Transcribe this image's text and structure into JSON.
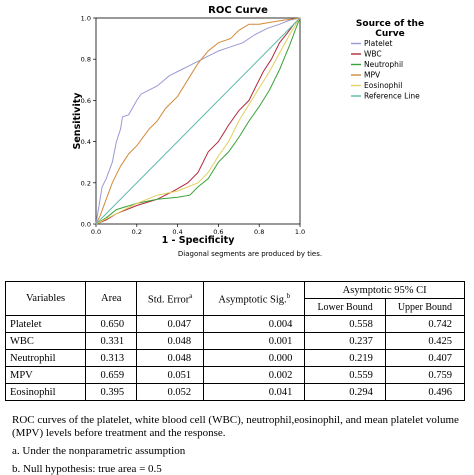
{
  "chart_data": {
    "type": "line",
    "title": "ROC Curve",
    "xlabel": "1 - Specificity",
    "ylabel": "Sensitivity",
    "xlim": [
      0,
      1
    ],
    "ylim": [
      0,
      1
    ],
    "xticks": [
      "0.0",
      "0.2",
      "0.4",
      "0.6",
      "0.8",
      "1.0"
    ],
    "yticks": [
      "0.0",
      "0.2",
      "0.4",
      "0.6",
      "0.8",
      "1.0"
    ],
    "legend_title": "Source of the Curve",
    "legend_position": "right",
    "footnote": "Diagonal segments are produced by ties.",
    "series": [
      {
        "name": "Platelet",
        "color": "#9a9ad6",
        "points": [
          [
            0,
            0
          ],
          [
            0.03,
            0.18
          ],
          [
            0.05,
            0.22
          ],
          [
            0.08,
            0.3
          ],
          [
            0.1,
            0.4
          ],
          [
            0.12,
            0.46
          ],
          [
            0.13,
            0.52
          ],
          [
            0.16,
            0.53
          ],
          [
            0.2,
            0.6
          ],
          [
            0.22,
            0.63
          ],
          [
            0.26,
            0.65
          ],
          [
            0.3,
            0.67
          ],
          [
            0.36,
            0.72
          ],
          [
            0.42,
            0.75
          ],
          [
            0.46,
            0.77
          ],
          [
            0.5,
            0.79
          ],
          [
            0.56,
            0.82
          ],
          [
            0.6,
            0.84
          ],
          [
            0.66,
            0.86
          ],
          [
            0.72,
            0.88
          ],
          [
            0.78,
            0.92
          ],
          [
            0.84,
            0.95
          ],
          [
            0.9,
            0.97
          ],
          [
            0.95,
            0.99
          ],
          [
            1,
            1
          ]
        ]
      },
      {
        "name": "WBC",
        "color": "#b02a3c",
        "points": [
          [
            0,
            0
          ],
          [
            0.05,
            0.02
          ],
          [
            0.1,
            0.05
          ],
          [
            0.2,
            0.09
          ],
          [
            0.3,
            0.12
          ],
          [
            0.38,
            0.16
          ],
          [
            0.45,
            0.2
          ],
          [
            0.5,
            0.25
          ],
          [
            0.55,
            0.35
          ],
          [
            0.6,
            0.4
          ],
          [
            0.65,
            0.48
          ],
          [
            0.7,
            0.55
          ],
          [
            0.75,
            0.6
          ],
          [
            0.78,
            0.66
          ],
          [
            0.82,
            0.74
          ],
          [
            0.86,
            0.8
          ],
          [
            0.9,
            0.88
          ],
          [
            0.94,
            0.93
          ],
          [
            0.97,
            0.97
          ],
          [
            1,
            1
          ]
        ]
      },
      {
        "name": "Neutrophil",
        "color": "#3aa33a",
        "points": [
          [
            0,
            0
          ],
          [
            0.05,
            0.03
          ],
          [
            0.1,
            0.07
          ],
          [
            0.2,
            0.1
          ],
          [
            0.3,
            0.12
          ],
          [
            0.4,
            0.13
          ],
          [
            0.46,
            0.14
          ],
          [
            0.5,
            0.18
          ],
          [
            0.55,
            0.22
          ],
          [
            0.6,
            0.3
          ],
          [
            0.65,
            0.35
          ],
          [
            0.7,
            0.42
          ],
          [
            0.75,
            0.5
          ],
          [
            0.8,
            0.57
          ],
          [
            0.85,
            0.65
          ],
          [
            0.9,
            0.75
          ],
          [
            0.95,
            0.87
          ],
          [
            0.98,
            0.95
          ],
          [
            1,
            1
          ]
        ]
      },
      {
        "name": "MPV",
        "color": "#d48a3a",
        "points": [
          [
            0,
            0
          ],
          [
            0.02,
            0.04
          ],
          [
            0.05,
            0.12
          ],
          [
            0.08,
            0.2
          ],
          [
            0.12,
            0.28
          ],
          [
            0.16,
            0.34
          ],
          [
            0.2,
            0.38
          ],
          [
            0.26,
            0.46
          ],
          [
            0.3,
            0.5
          ],
          [
            0.34,
            0.56
          ],
          [
            0.4,
            0.62
          ],
          [
            0.45,
            0.7
          ],
          [
            0.5,
            0.78
          ],
          [
            0.55,
            0.84
          ],
          [
            0.6,
            0.88
          ],
          [
            0.66,
            0.9
          ],
          [
            0.7,
            0.94
          ],
          [
            0.75,
            0.97
          ],
          [
            0.8,
            0.97
          ],
          [
            0.86,
            0.98
          ],
          [
            0.92,
            0.99
          ],
          [
            1,
            1
          ]
        ]
      },
      {
        "name": "Eosinophil",
        "color": "#e2d060",
        "points": [
          [
            0,
            0
          ],
          [
            0.1,
            0.05
          ],
          [
            0.2,
            0.1
          ],
          [
            0.3,
            0.14
          ],
          [
            0.4,
            0.16
          ],
          [
            0.5,
            0.2
          ],
          [
            0.55,
            0.25
          ],
          [
            0.6,
            0.33
          ],
          [
            0.65,
            0.4
          ],
          [
            0.7,
            0.5
          ],
          [
            0.75,
            0.58
          ],
          [
            0.8,
            0.66
          ],
          [
            0.85,
            0.74
          ],
          [
            0.9,
            0.83
          ],
          [
            0.95,
            0.92
          ],
          [
            0.98,
            0.97
          ],
          [
            1,
            1
          ]
        ]
      },
      {
        "name": "Reference Line",
        "color": "#5bb8a6",
        "points": [
          [
            0,
            0
          ],
          [
            1,
            1
          ]
        ]
      }
    ]
  },
  "table": {
    "headers": {
      "variables": "Variables",
      "area": "Area",
      "std_error": "Std. Error",
      "std_error_sup": "a",
      "asym_sig": "Asymptotic Sig.",
      "asym_sig_sup": "b",
      "ci": "Asymptotic 95% CI",
      "lower": "Lower Bound",
      "upper": "Upper Bound"
    },
    "rows": [
      {
        "variable": "Platelet",
        "area": "0.650",
        "std_error": "0.047",
        "sig": "0.004",
        "lower": "0.558",
        "upper": "0.742"
      },
      {
        "variable": "WBC",
        "area": "0.331",
        "std_error": "0.048",
        "sig": "0.001",
        "lower": "0.237",
        "upper": "0.425"
      },
      {
        "variable": "Neutrophil",
        "area": "0.313",
        "std_error": "0.048",
        "sig": "0.000",
        "lower": "0.219",
        "upper": "0.407"
      },
      {
        "variable": "MPV",
        "area": "0.659",
        "std_error": "0.051",
        "sig": "0.002",
        "lower": "0.559",
        "upper": "0.759"
      },
      {
        "variable": "Eosinophil",
        "area": "0.395",
        "std_error": "0.052",
        "sig": "0.041",
        "lower": "0.294",
        "upper": "0.496"
      }
    ]
  },
  "caption": {
    "text": "ROC curves of the platelet, white blood cell (WBC), neutrophil,eosinophil, and  mean platelet volume (MPV) levels before treatment and the response.",
    "note_a": "a. Under the nonparametric assumption",
    "note_b": "b. Null hypothesis: true area = 0.5"
  }
}
